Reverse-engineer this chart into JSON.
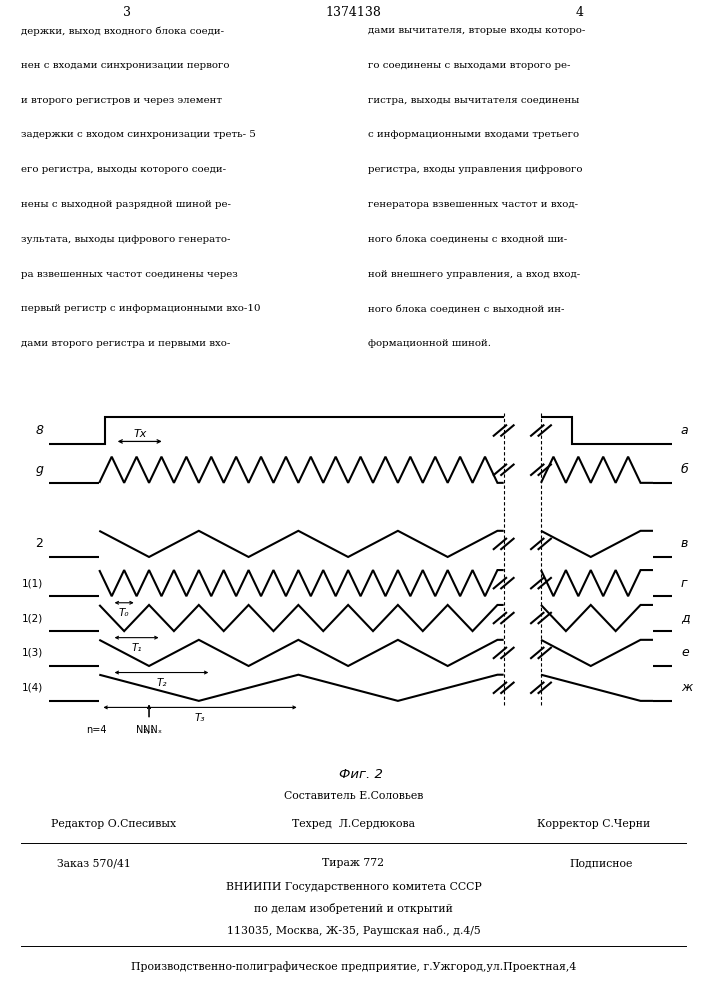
{
  "title": "1374138",
  "page_left": "3",
  "page_right": "4",
  "fig_label": "Фиг. 2",
  "left_text_lines": [
    "держки, выход входного блока соеди-",
    "нен с входами синхронизации первого",
    "и второго регистров и через элемент",
    "задержки с входом синхронизации треть- 5",
    "его регистра, выходы которого соеди-",
    "нены с выходной разрядной шиной ре-",
    "зультата, выходы цифрового генерато-",
    "ра взвешенных частот соединены через",
    "первый регистр с информационными вхо-10",
    "дами второго регистра и первыми вхо-"
  ],
  "right_text_lines": [
    "дами вычитателя, вторые входы которо-",
    "го соединены с выходами второго ре-",
    "гистра, выходы вычитателя соединены",
    "с информационными входами третьего",
    "регистра, входы управления цифрового",
    "генератора взвешенных частот и вход-",
    "ного блока соединены с входной ши-",
    "ной внешнего управления, а вход вход-",
    "ного блока соединен с выходной ин-",
    "формационной шиной."
  ],
  "footer_composer": "Составитель Е.Соловьев",
  "footer_editor": "Редактор О.Спесивых",
  "footer_techred": "Техред  Л.Сердюкова",
  "footer_corrector": "Корректор С.Черни",
  "footer_order": "Заказ 570/41",
  "footer_tirazh": "Тираж 772",
  "footer_podpisnoe": "Подписное",
  "footer_vnipi": "ВНИИПИ Государственного комитета СССР",
  "footer_po_delam": "по делам изобретений и открытий",
  "footer_address": "113035, Москва, Ж-35, Раушская наб., д.4/5",
  "footer_proizv": "Производственно-полиграфическое предприятие, г.Ужгород,ул.Проектная,4"
}
